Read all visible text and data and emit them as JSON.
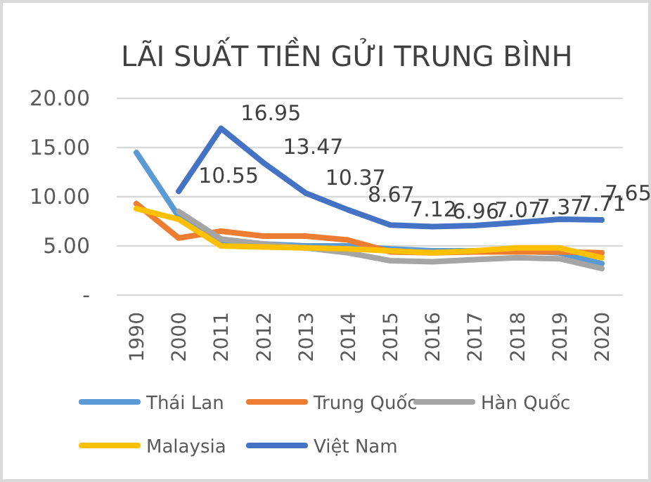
{
  "chart_data": {
    "type": "line",
    "title": "LÃI SUẤT TIỀN GỬI TRUNG BÌNH",
    "categories": [
      "1990",
      "2000",
      "2011",
      "2012",
      "2013",
      "2014",
      "2015",
      "2016",
      "2017",
      "2018",
      "2019",
      "2020"
    ],
    "ylim": [
      0,
      20
    ],
    "yticks": [
      {
        "value": 0,
        "label": "-"
      },
      {
        "value": 5,
        "label": "5.00"
      },
      {
        "value": 10,
        "label": "10.00"
      },
      {
        "value": 15,
        "label": "15.00"
      },
      {
        "value": 20,
        "label": "20.00"
      }
    ],
    "grid": "y",
    "legend": "bottom",
    "marker": "none",
    "line_style": "solid",
    "series": [
      {
        "name": "Thái Lan",
        "color": "#5b9bd5",
        "values": [
          14.5,
          8.0,
          5.5,
          5.2,
          5.0,
          5.0,
          4.7,
          4.5,
          4.5,
          4.5,
          4.3,
          3.2
        ]
      },
      {
        "name": "Trung Quốc",
        "color": "#ed7d31",
        "values": [
          9.3,
          5.8,
          6.5,
          6.0,
          6.0,
          5.6,
          4.4,
          4.3,
          4.4,
          4.4,
          4.4,
          4.3
        ]
      },
      {
        "name": "Hàn Quốc",
        "color": "#a5a5a5",
        "values": [
          null,
          8.5,
          5.7,
          5.2,
          4.8,
          4.3,
          3.5,
          3.4,
          3.6,
          3.8,
          3.7,
          2.7
        ]
      },
      {
        "name": "Malaysia",
        "color": "#ffc000",
        "values": [
          8.8,
          7.7,
          5.0,
          4.9,
          4.8,
          4.7,
          4.5,
          4.3,
          4.5,
          4.8,
          4.8,
          3.8
        ]
      },
      {
        "name": "Việt Nam",
        "color": "#4472c4",
        "values": [
          null,
          10.55,
          16.95,
          13.47,
          10.37,
          8.67,
          7.12,
          6.96,
          7.07,
          7.37,
          7.71,
          7.65
        ],
        "value_labels": [
          null,
          "10.55",
          "16.95",
          "13.47",
          "10.37",
          "8.67",
          "7.12",
          "6.96",
          "7.07",
          "7.37",
          "7.71",
          "7.65"
        ]
      }
    ]
  }
}
